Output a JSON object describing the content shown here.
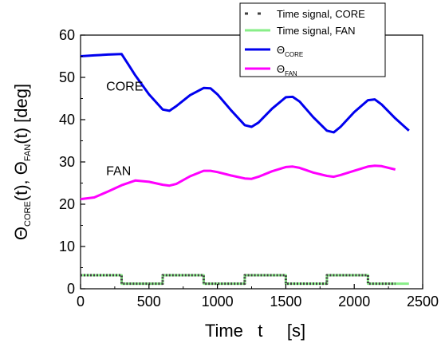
{
  "chart_data": {
    "type": "line",
    "xlabel": "Time   t     [s]",
    "ylabel": {
      "theta1": "Θ",
      "sub1": "CORE",
      "mid": "(t), Θ",
      "sub2": "FAN",
      "tail": "(t) [deg]"
    },
    "xlim": [
      0,
      2500
    ],
    "ylim": [
      0,
      60
    ],
    "x_ticks": [
      0,
      500,
      1000,
      1500,
      2000,
      2500
    ],
    "y_ticks": [
      0,
      10,
      20,
      30,
      40,
      50,
      60
    ],
    "grid": false,
    "legend_position": "top-right",
    "annotations": [
      {
        "text": "CORE",
        "x": 100,
        "y": 48
      },
      {
        "text": "FAN",
        "x": 100,
        "y": 28
      }
    ],
    "series": [
      {
        "name": "Time signal, CORE",
        "label_main": "Time signal, CORE",
        "label_sub": "",
        "color": "#404040",
        "style": "dotted",
        "x": [
          0,
          300,
          300,
          600,
          600,
          900,
          900,
          1200,
          1200,
          1500,
          1500,
          1800,
          1800,
          2100,
          2100,
          2300
        ],
        "y": [
          3.2,
          3.2,
          1.2,
          1.2,
          3.2,
          3.2,
          1.2,
          1.2,
          3.2,
          3.2,
          1.2,
          1.2,
          3.2,
          3.2,
          1.2,
          1.2
        ]
      },
      {
        "name": "Time signal, FAN",
        "label_main": "Time signal, FAN",
        "label_sub": "",
        "color": "#88ee88",
        "style": "solid",
        "x": [
          0,
          300,
          300,
          600,
          600,
          900,
          900,
          1200,
          1200,
          1500,
          1500,
          1800,
          1800,
          2100,
          2100,
          2400
        ],
        "y": [
          3.2,
          3.2,
          1.2,
          1.2,
          3.2,
          3.2,
          1.2,
          1.2,
          3.2,
          3.2,
          1.2,
          1.2,
          3.2,
          3.2,
          1.2,
          1.2
        ]
      },
      {
        "name": "Θ_CORE",
        "label_main": "Θ",
        "label_sub": "CORE",
        "color": "#0000ee",
        "style": "solid",
        "x": [
          0,
          100,
          200,
          300,
          350,
          400,
          500,
          600,
          650,
          700,
          800,
          900,
          950,
          1000,
          1100,
          1200,
          1250,
          1300,
          1400,
          1500,
          1550,
          1600,
          1700,
          1800,
          1850,
          1900,
          2000,
          2100,
          2150,
          2200,
          2300,
          2400
        ],
        "y": [
          55.0,
          55.2,
          55.4,
          55.5,
          53.0,
          50.5,
          46.0,
          42.4,
          42.1,
          43.2,
          45.8,
          47.5,
          47.4,
          46.0,
          42.2,
          38.7,
          38.3,
          39.3,
          42.6,
          45.3,
          45.4,
          44.3,
          40.6,
          37.4,
          37.0,
          38.3,
          41.8,
          44.6,
          44.8,
          43.6,
          40.3,
          37.4
        ]
      },
      {
        "name": "Θ_FAN",
        "label_main": "Θ",
        "label_sub": "FAN",
        "color": "#ff00ff",
        "style": "solid",
        "x": [
          0,
          100,
          200,
          300,
          400,
          500,
          600,
          650,
          700,
          800,
          900,
          950,
          1000,
          1100,
          1200,
          1250,
          1300,
          1400,
          1500,
          1550,
          1600,
          1700,
          1800,
          1850,
          1900,
          2000,
          2100,
          2150,
          2200,
          2300
        ],
        "y": [
          21.2,
          21.6,
          23.0,
          24.5,
          25.6,
          25.3,
          24.6,
          24.4,
          24.8,
          26.6,
          27.9,
          27.9,
          27.6,
          26.8,
          26.1,
          26.0,
          26.5,
          27.8,
          28.8,
          28.9,
          28.6,
          27.5,
          26.7,
          26.5,
          26.9,
          27.9,
          28.9,
          29.1,
          29.0,
          28.2
        ]
      }
    ]
  }
}
